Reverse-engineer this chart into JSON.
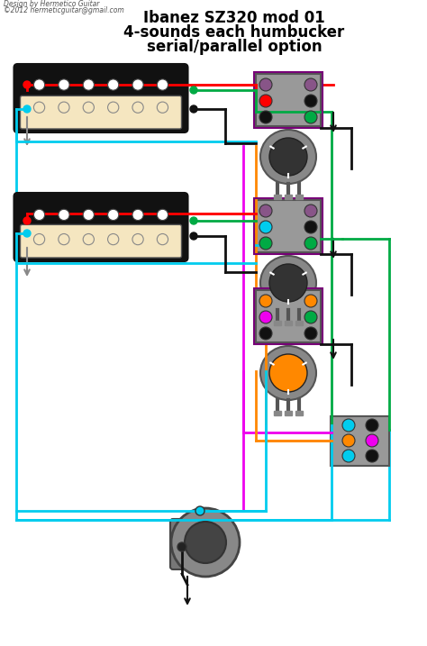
{
  "title_line1": "Ibanez SZ320 mod 01",
  "title_line2": "4-sounds each humbucker",
  "title_line3": "serial/parallel option",
  "watermark_line1": "Design by Hermetico Guitar",
  "watermark_line2": "©2012 hermeticguitar@gmail.com",
  "bg_color": "#ffffff",
  "title_fontsize": 12,
  "watermark_fontsize": 5.5,
  "colors": {
    "red": "#ff0000",
    "cyan": "#00ccee",
    "black": "#000000",
    "green": "#00aa44",
    "gray": "#888888",
    "white": "#ffffff",
    "cream": "#f5e6c0",
    "dark": "#111111",
    "magenta": "#ee00ee",
    "orange": "#ff8800",
    "purple": "#884488",
    "darkgray": "#555555",
    "lightgray": "#aaaaaa",
    "medgray": "#888888"
  }
}
